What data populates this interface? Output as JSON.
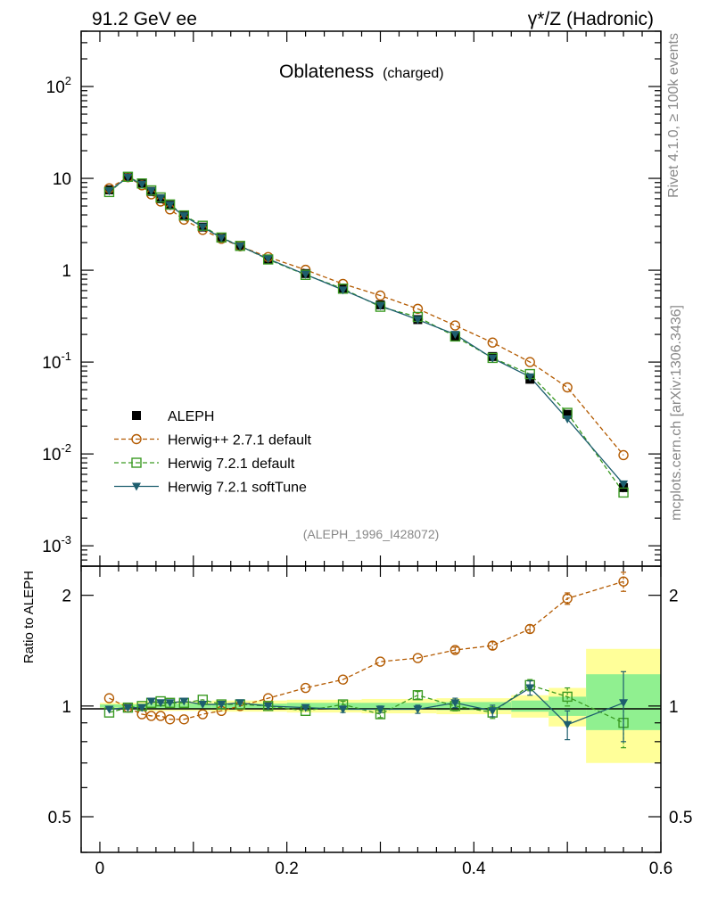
{
  "header": {
    "left": "91.2 GeV ee",
    "right": "γ*/Z (Hadronic)"
  },
  "side": {
    "rivet": "Rivet 4.1.0, ≥ 100k events",
    "mcplots": "mcplots.cern.ch [arXiv:1306.3436]"
  },
  "chart_data": {
    "type": "line",
    "title": "Oblateness",
    "subtitle": "(charged)",
    "analysis_id": "(ALEPH_1996_I428072)",
    "xlabel": "",
    "ylabel": "",
    "ratio_ylabel": "Ratio to ALEPH",
    "xlim": [
      -0.02,
      0.6
    ],
    "ylim": [
      0.0006,
      400
    ],
    "yscale": "log",
    "ratio_ylim": [
      0.4,
      2.4
    ],
    "x_ticks": [
      "0",
      "0.2",
      "0.4",
      "0.6"
    ],
    "y_ticks_main": [
      {
        "base": "10",
        "exp": "-3",
        "value": 0.001
      },
      {
        "base": "10",
        "exp": "-2",
        "value": 0.01
      },
      {
        "base": "10",
        "exp": "-1",
        "value": 0.1
      },
      {
        "base": "1",
        "exp": "",
        "value": 1
      },
      {
        "base": "10",
        "exp": "",
        "value": 10
      },
      {
        "base": "10",
        "exp": "2",
        "value": 100
      }
    ],
    "y_ticks_ratio": [
      {
        "label": "0.5",
        "value": 0.5
      },
      {
        "label": "1",
        "value": 1
      },
      {
        "label": "2",
        "value": 2
      }
    ],
    "legend_position": "bottom-left",
    "x": [
      0.01,
      0.03,
      0.045,
      0.055,
      0.065,
      0.075,
      0.09,
      0.11,
      0.13,
      0.15,
      0.18,
      0.22,
      0.26,
      0.3,
      0.34,
      0.38,
      0.42,
      0.46,
      0.5,
      0.56
    ],
    "bands": [
      {
        "x0": 0.0,
        "x1": 0.04,
        "yel": [
          0.98,
          1.02
        ],
        "grn": [
          0.99,
          1.01
        ]
      },
      {
        "x0": 0.04,
        "x1": 0.12,
        "yel": [
          0.97,
          1.03
        ],
        "grn": [
          0.985,
          1.015
        ]
      },
      {
        "x0": 0.12,
        "x1": 0.2,
        "yel": [
          0.965,
          1.035
        ],
        "grn": [
          0.985,
          1.015
        ]
      },
      {
        "x0": 0.2,
        "x1": 0.28,
        "yel": [
          0.96,
          1.04
        ],
        "grn": [
          0.98,
          1.02
        ]
      },
      {
        "x0": 0.28,
        "x1": 0.36,
        "yel": [
          0.955,
          1.045
        ],
        "grn": [
          0.98,
          1.02
        ]
      },
      {
        "x0": 0.36,
        "x1": 0.44,
        "yel": [
          0.95,
          1.05
        ],
        "grn": [
          0.975,
          1.025
        ]
      },
      {
        "x0": 0.44,
        "x1": 0.48,
        "yel": [
          0.93,
          1.07
        ],
        "grn": [
          0.965,
          1.035
        ]
      },
      {
        "x0": 0.48,
        "x1": 0.52,
        "yel": [
          0.88,
          1.12
        ],
        "grn": [
          0.94,
          1.06
        ]
      },
      {
        "x0": 0.52,
        "x1": 0.6,
        "yel": [
          0.7,
          1.43
        ],
        "grn": [
          0.86,
          1.22
        ]
      }
    ],
    "series": [
      {
        "name": "ALEPH",
        "color": "#000000",
        "marker": "square-filled",
        "line": "none",
        "values": [
          7.5,
          10.5,
          8.8,
          7.2,
          6.0,
          5.1,
          3.9,
          2.95,
          2.25,
          1.82,
          1.32,
          0.92,
          0.62,
          0.42,
          0.29,
          0.19,
          0.115,
          0.065,
          0.027,
          0.0043
        ],
        "ratio": null
      },
      {
        "name": "Herwig++ 2.7.1 default",
        "color": "#b35a00",
        "marker": "circle-open",
        "line": "dashed",
        "values": [
          7.8,
          10.3,
          8.4,
          6.7,
          5.6,
          4.6,
          3.55,
          2.75,
          2.2,
          1.82,
          1.39,
          1.01,
          0.71,
          0.53,
          0.38,
          0.25,
          0.163,
          0.1,
          0.053,
          0.0097
        ],
        "ratio": [
          1.05,
          0.99,
          0.95,
          0.94,
          0.94,
          0.92,
          0.92,
          0.95,
          0.97,
          1.0,
          1.05,
          1.12,
          1.18,
          1.32,
          1.35,
          1.42,
          1.46,
          1.62,
          1.96,
          2.18
        ],
        "ratio_err": [
          0.01,
          0.01,
          0.01,
          0.01,
          0.01,
          0.01,
          0.01,
          0.01,
          0.01,
          0.01,
          0.01,
          0.015,
          0.015,
          0.02,
          0.02,
          0.025,
          0.035,
          0.04,
          0.07,
          0.13
        ]
      },
      {
        "name": "Herwig 7.2.1 default",
        "color": "#3a9a22",
        "marker": "square-open",
        "line": "dashed",
        "values": [
          7.1,
          10.4,
          8.8,
          7.4,
          6.2,
          5.2,
          3.95,
          3.05,
          2.27,
          1.84,
          1.31,
          0.89,
          0.63,
          0.4,
          0.31,
          0.19,
          0.111,
          0.074,
          0.028,
          0.0038
        ],
        "ratio": [
          0.96,
          0.99,
          1.0,
          1.02,
          1.03,
          1.02,
          1.02,
          1.04,
          1.01,
          1.01,
          1.0,
          0.97,
          1.01,
          0.95,
          1.07,
          1.0,
          0.96,
          1.14,
          1.06,
          0.9
        ],
        "ratio_err": [
          0.01,
          0.01,
          0.01,
          0.01,
          0.01,
          0.01,
          0.01,
          0.01,
          0.01,
          0.01,
          0.015,
          0.015,
          0.02,
          0.02,
          0.025,
          0.03,
          0.035,
          0.04,
          0.06,
          0.13
        ]
      },
      {
        "name": "Herwig 7.2.1 softTune",
        "color": "#1d5e6e",
        "marker": "triangle-down-filled",
        "line": "solid",
        "values": [
          7.3,
          10.3,
          8.6,
          7.3,
          6.1,
          5.1,
          3.9,
          2.95,
          2.25,
          1.83,
          1.33,
          0.9,
          0.61,
          0.41,
          0.29,
          0.2,
          0.11,
          0.069,
          0.024,
          0.0047
        ],
        "ratio": [
          0.98,
          0.99,
          0.99,
          1.03,
          1.02,
          1.02,
          1.03,
          1.01,
          1.01,
          1.02,
          1.0,
          0.99,
          0.98,
          0.98,
          0.98,
          1.02,
          0.97,
          1.12,
          0.89,
          1.02
        ],
        "ratio_err": [
          0.01,
          0.01,
          0.01,
          0.01,
          0.01,
          0.01,
          0.01,
          0.01,
          0.01,
          0.01,
          0.015,
          0.015,
          0.02,
          0.02,
          0.025,
          0.03,
          0.035,
          0.05,
          0.08,
          0.22
        ]
      }
    ]
  }
}
